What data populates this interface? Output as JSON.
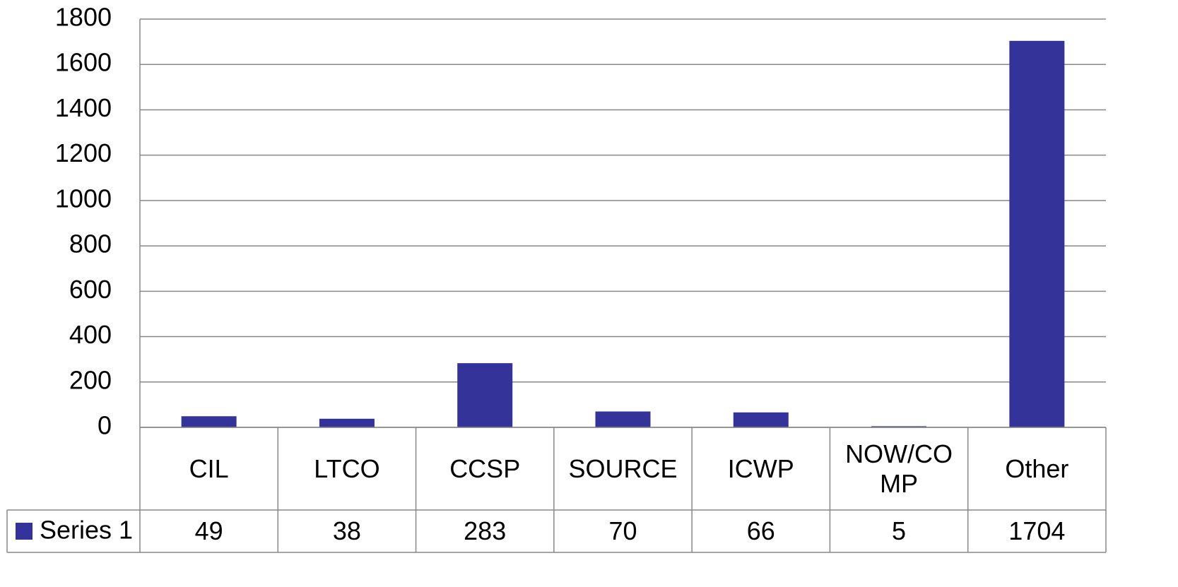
{
  "chart_data": {
    "type": "bar",
    "categories": [
      "CIL",
      "LTCO",
      "CCSP",
      "SOURCE",
      "ICWP",
      "NOW/COMP",
      "Other"
    ],
    "series": [
      {
        "name": "Series 1",
        "color": "#333399",
        "values": [
          49,
          38,
          283,
          70,
          66,
          5,
          1704
        ]
      }
    ],
    "ylim": [
      0,
      1800
    ],
    "yticks": [
      0,
      200,
      400,
      600,
      800,
      1000,
      1200,
      1400,
      1600,
      1800
    ],
    "grid": true,
    "data_table": true
  }
}
